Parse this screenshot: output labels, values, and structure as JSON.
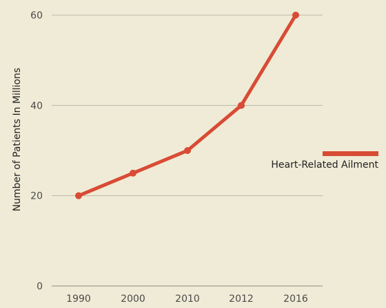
{
  "chart_data": {
    "type": "line",
    "categories": [
      "1990",
      "2000",
      "2010",
      "2012",
      "2016"
    ],
    "series": [
      {
        "name": "Heart-Related Ailment",
        "values": [
          20,
          25,
          30,
          40,
          60
        ],
        "color": "#d84b35"
      }
    ],
    "xlabel": "",
    "ylabel": "Number of Patients In Millions",
    "ylim": [
      0,
      60
    ],
    "yticks": [
      0,
      20,
      40,
      60
    ],
    "grid": true,
    "legend_position": "right",
    "background": "#efebd6"
  }
}
